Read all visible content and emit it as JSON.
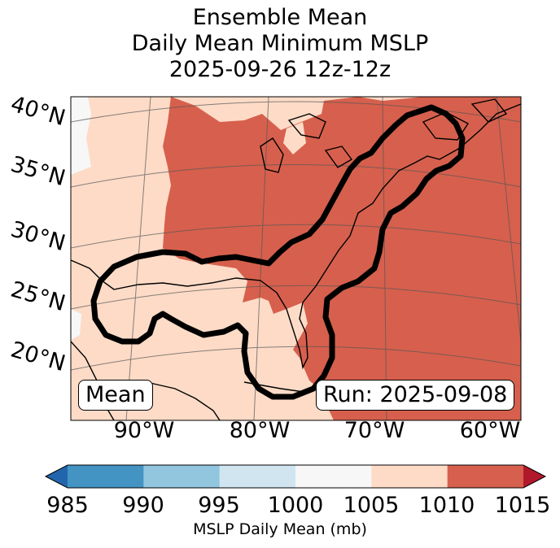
{
  "title": {
    "line1": "Ensemble Mean",
    "line2": "Daily Mean Minimum MSLP",
    "line3": "2025-09-26 12z-12z"
  },
  "map": {
    "lat_labels": [
      "40°N",
      "35°N",
      "30°N",
      "25°N",
      "20°N"
    ],
    "lon_labels": [
      "90°W",
      "80°W",
      "70°W",
      "60°W"
    ],
    "mean_label": "Mean",
    "run_label": "Run: 2025-09-08",
    "fill_colors": {
      "high": "#d6604d",
      "mid": "#fddbc7",
      "neutral": "#f7f7f7"
    },
    "contour_color": "#000000"
  },
  "colorbar": {
    "ticks": [
      "985",
      "990",
      "995",
      "1000",
      "1005",
      "1010",
      "1015"
    ],
    "colors": [
      "#4393c3",
      "#92c5de",
      "#d1e5f0",
      "#f7f7f7",
      "#fddbc7",
      "#d6604d"
    ],
    "under_color": "#2166ac",
    "over_color": "#b2182b",
    "label": "MSLP Daily Mean (mb)"
  }
}
